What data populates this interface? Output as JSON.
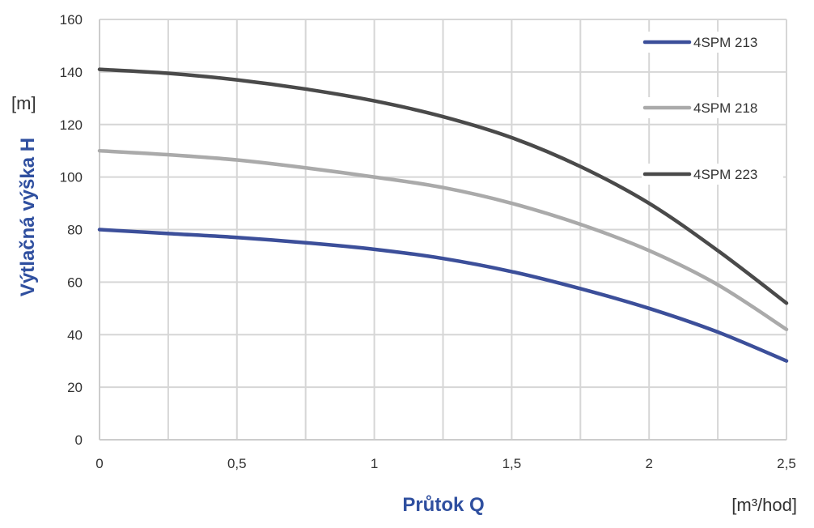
{
  "chart_data": {
    "type": "line",
    "ylabel": "Výtlačná výška H",
    "y_unit": "[m]",
    "xlabel": "Průtok Q",
    "x_unit": "[m³/hod]",
    "xlim": [
      0,
      2.5
    ],
    "ylim": [
      0,
      160
    ],
    "x_ticks": [
      {
        "value": 0,
        "label": "0"
      },
      {
        "value": 0.5,
        "label": "0,5"
      },
      {
        "value": 1,
        "label": "1"
      },
      {
        "value": 1.5,
        "label": "1,5"
      },
      {
        "value": 2,
        "label": "2"
      },
      {
        "value": 2.5,
        "label": "2,5"
      }
    ],
    "y_ticks": [
      {
        "value": 0,
        "label": "0"
      },
      {
        "value": 20,
        "label": "20"
      },
      {
        "value": 40,
        "label": "40"
      },
      {
        "value": 60,
        "label": "60"
      },
      {
        "value": 80,
        "label": "80"
      },
      {
        "value": 100,
        "label": "100"
      },
      {
        "value": 120,
        "label": "120"
      },
      {
        "value": 140,
        "label": "140"
      },
      {
        "value": 160,
        "label": "160"
      }
    ],
    "grid": true,
    "minor_grid_x_step": 0.25,
    "legend_position": "top-right",
    "label_color": "#2f4f9f",
    "series": [
      {
        "name": "4SPM 213",
        "color": "#3c4f9a",
        "x": [
          0,
          0.25,
          0.5,
          0.75,
          1,
          1.25,
          1.5,
          1.75,
          2,
          2.25,
          2.5
        ],
        "y": [
          80,
          78.5,
          77,
          75,
          72.5,
          69,
          64,
          57.5,
          50,
          41,
          30
        ]
      },
      {
        "name": "4SPM 218",
        "color": "#aaaaaa",
        "x": [
          0,
          0.25,
          0.5,
          0.75,
          1,
          1.25,
          1.5,
          1.75,
          2,
          2.25,
          2.5
        ],
        "y": [
          110,
          108.5,
          106.5,
          103.5,
          100,
          96,
          90,
          82,
          72,
          59,
          42
        ]
      },
      {
        "name": "4SPM 223",
        "color": "#4a4a4a",
        "x": [
          0,
          0.25,
          0.5,
          0.75,
          1,
          1.25,
          1.5,
          1.75,
          2,
          2.25,
          2.5
        ],
        "y": [
          141,
          139.5,
          137,
          133.5,
          129,
          123,
          115,
          104,
          90,
          72,
          52
        ]
      }
    ]
  }
}
